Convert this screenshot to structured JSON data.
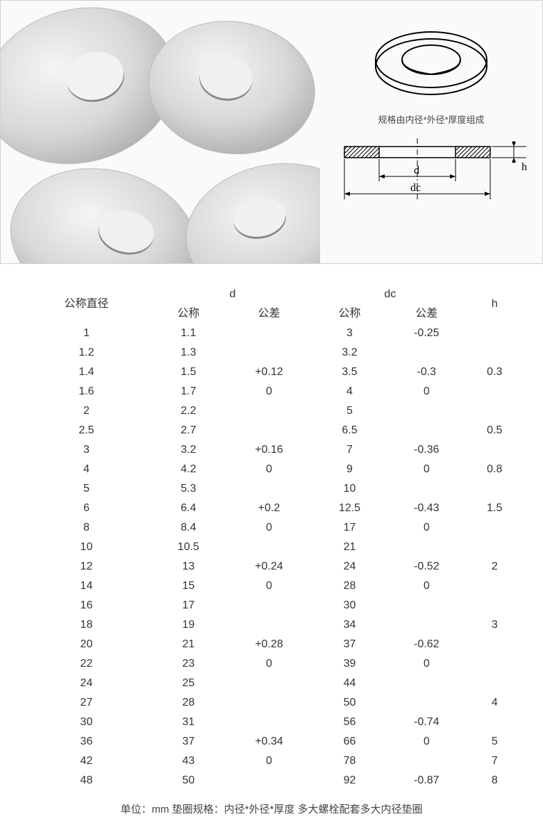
{
  "diagram": {
    "caption": "规格由内径*外径*厚度组成",
    "label_d": "d",
    "label_dc": "dc",
    "label_h": "h"
  },
  "table": {
    "headers": {
      "nominal_diameter": "公称直径",
      "d": "d",
      "dc": "dc",
      "h": "h",
      "nominal": "公称",
      "tolerance": "公差"
    },
    "rows": [
      {
        "nom": "1",
        "d_nom": "1.1",
        "d_tol": "",
        "dc_nom": "3",
        "dc_tol": "-0.25",
        "h": ""
      },
      {
        "nom": "1.2",
        "d_nom": "1.3",
        "d_tol": "",
        "dc_nom": "3.2",
        "dc_tol": "",
        "h": ""
      },
      {
        "nom": "1.4",
        "d_nom": "1.5",
        "d_tol": "+0.12",
        "dc_nom": "3.5",
        "dc_tol": "-0.3",
        "h": "0.3"
      },
      {
        "nom": "1.6",
        "d_nom": "1.7",
        "d_tol": "0",
        "dc_nom": "4",
        "dc_tol": "0",
        "h": ""
      },
      {
        "nom": "2",
        "d_nom": "2.2",
        "d_tol": "",
        "dc_nom": "5",
        "dc_tol": "",
        "h": ""
      },
      {
        "nom": "2.5",
        "d_nom": "2.7",
        "d_tol": "",
        "dc_nom": "6.5",
        "dc_tol": "",
        "h": "0.5"
      },
      {
        "nom": "3",
        "d_nom": "3.2",
        "d_tol": "+0.16",
        "dc_nom": "7",
        "dc_tol": "-0.36",
        "h": ""
      },
      {
        "nom": "4",
        "d_nom": "4.2",
        "d_tol": "0",
        "dc_nom": "9",
        "dc_tol": "0",
        "h": "0.8"
      },
      {
        "nom": "5",
        "d_nom": "5.3",
        "d_tol": "",
        "dc_nom": "10",
        "dc_tol": "",
        "h": ""
      },
      {
        "nom": "6",
        "d_nom": "6.4",
        "d_tol": "+0.2",
        "dc_nom": "12.5",
        "dc_tol": "-0.43",
        "h": "1.5"
      },
      {
        "nom": "8",
        "d_nom": "8.4",
        "d_tol": "0",
        "dc_nom": "17",
        "dc_tol": "0",
        "h": ""
      },
      {
        "nom": "10",
        "d_nom": "10.5",
        "d_tol": "",
        "dc_nom": "21",
        "dc_tol": "",
        "h": ""
      },
      {
        "nom": "12",
        "d_nom": "13",
        "d_tol": "+0.24",
        "dc_nom": "24",
        "dc_tol": "-0.52",
        "h": "2"
      },
      {
        "nom": "14",
        "d_nom": "15",
        "d_tol": "0",
        "dc_nom": "28",
        "dc_tol": "0",
        "h": ""
      },
      {
        "nom": "16",
        "d_nom": "17",
        "d_tol": "",
        "dc_nom": "30",
        "dc_tol": "",
        "h": ""
      },
      {
        "nom": "18",
        "d_nom": "19",
        "d_tol": "",
        "dc_nom": "34",
        "dc_tol": "",
        "h": "3"
      },
      {
        "nom": "20",
        "d_nom": "21",
        "d_tol": "+0.28",
        "dc_nom": "37",
        "dc_tol": "-0.62",
        "h": ""
      },
      {
        "nom": "22",
        "d_nom": "23",
        "d_tol": "0",
        "dc_nom": "39",
        "dc_tol": "0",
        "h": ""
      },
      {
        "nom": "24",
        "d_nom": "25",
        "d_tol": "",
        "dc_nom": "44",
        "dc_tol": "",
        "h": ""
      },
      {
        "nom": "27",
        "d_nom": "28",
        "d_tol": "",
        "dc_nom": "50",
        "dc_tol": "",
        "h": "4"
      },
      {
        "nom": "30",
        "d_nom": "31",
        "d_tol": "",
        "dc_nom": "56",
        "dc_tol": "-0.74",
        "h": ""
      },
      {
        "nom": "36",
        "d_nom": "37",
        "d_tol": "+0.34",
        "dc_nom": "66",
        "dc_tol": "0",
        "h": "5"
      },
      {
        "nom": "42",
        "d_nom": "43",
        "d_tol": "0",
        "dc_nom": "78",
        "dc_tol": "",
        "h": "7"
      },
      {
        "nom": "48",
        "d_nom": "50",
        "d_tol": "",
        "dc_nom": "92",
        "dc_tol": "-0.87",
        "h": "8"
      }
    ]
  },
  "footer": "单位：mm 垫圈规格：内径*外径*厚度 多大螺栓配套多大内径垫圈",
  "colors": {
    "text": "#333333",
    "border": "#d0d0d0",
    "metal_light": "#e8e8e8",
    "metal_dark": "#b8b8b8",
    "hatch": "#000000"
  }
}
